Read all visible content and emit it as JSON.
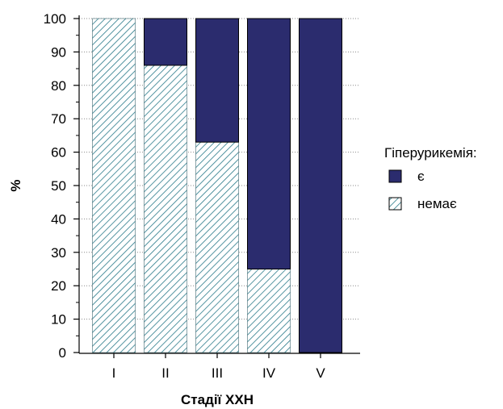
{
  "chart_data": {
    "type": "bar",
    "stacked": true,
    "categories": [
      "I",
      "II",
      "III",
      "IV",
      "V"
    ],
    "series": [
      {
        "name": "немає",
        "values": [
          100,
          86,
          63,
          25,
          0
        ],
        "pattern": "diagonal-hatch",
        "color": "#2a7a8a"
      },
      {
        "name": "є",
        "values": [
          0,
          14,
          37,
          75,
          100
        ],
        "color": "#2b2c6e"
      }
    ],
    "title": "",
    "xlabel": "Стадії ХХН",
    "ylabel": "%",
    "ylim": [
      0,
      100
    ],
    "yticks": [
      0,
      10,
      20,
      30,
      40,
      50,
      60,
      70,
      80,
      90,
      100
    ],
    "grid": "horizontal-dotted",
    "legend": {
      "title": "Гіперурикемія:",
      "placement": "right",
      "entries": [
        "є",
        "немає"
      ]
    }
  }
}
